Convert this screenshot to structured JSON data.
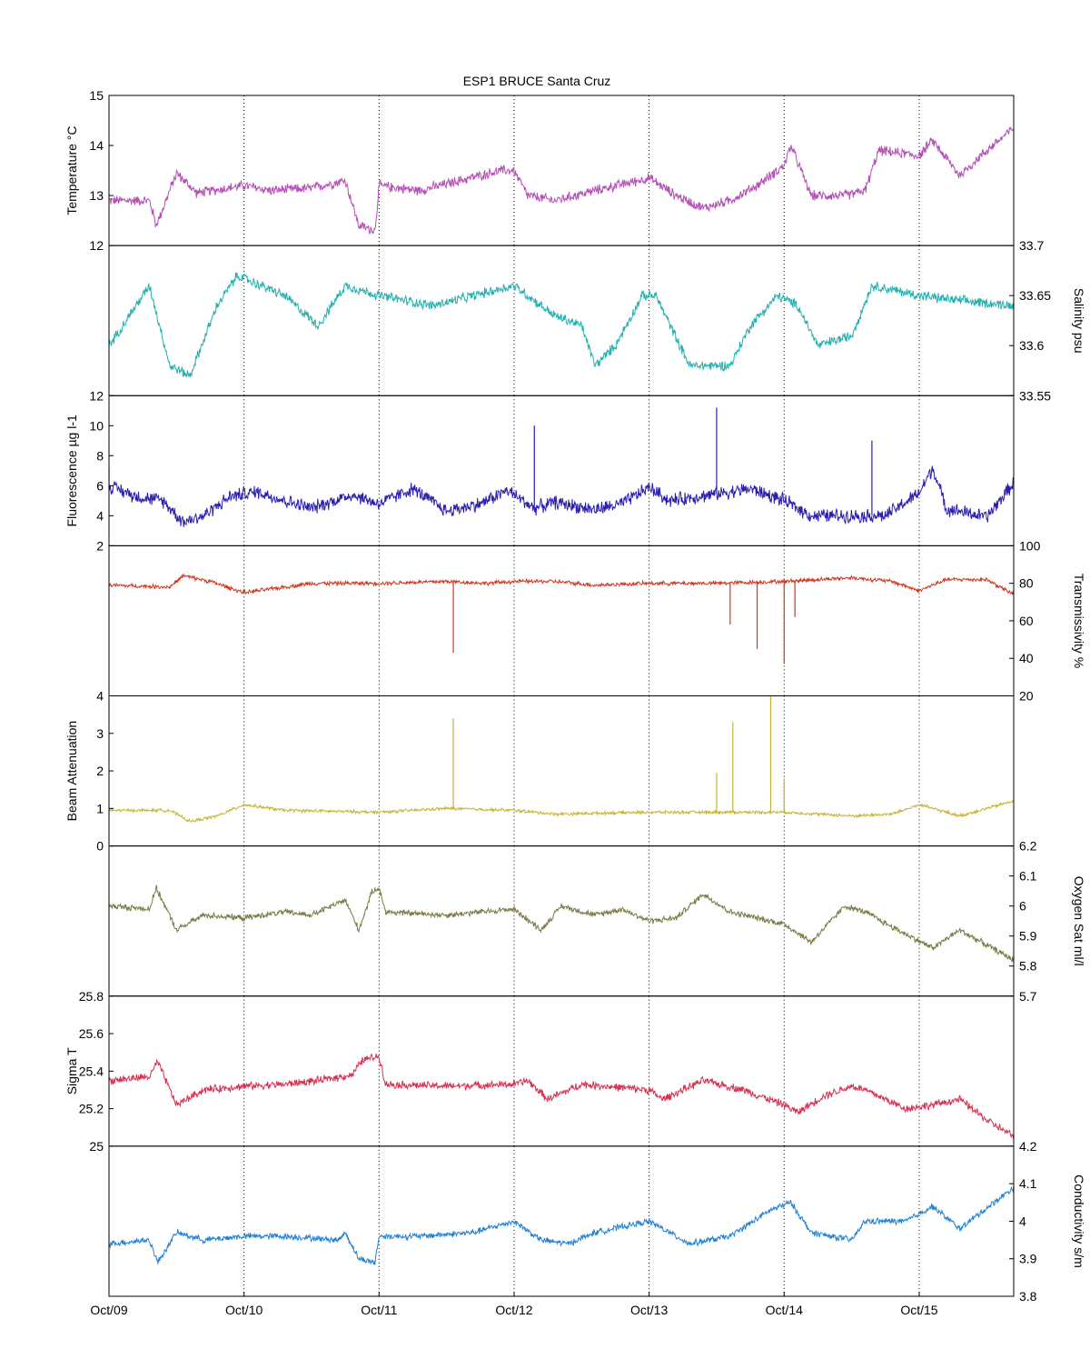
{
  "chart_data": {
    "type": "line",
    "title": "ESP1 BRUCE Santa Cruz",
    "x_ticks": [
      "Oct/09",
      "Oct/10",
      "Oct/11",
      "Oct/12",
      "Oct/13",
      "Oct/14",
      "Oct/15"
    ],
    "xlim": [
      0,
      6.7
    ],
    "grid": "vertical-dotted",
    "panels": [
      {
        "name": "temperature",
        "ylabel": "Temperature °C",
        "axis_side": "left",
        "ylim": [
          12,
          15
        ],
        "yticks": [
          "12",
          "13",
          "14",
          "15"
        ],
        "color": "#b44fb4",
        "noise": 0.12,
        "profile": [
          [
            0,
            12.9
          ],
          [
            0.3,
            12.9
          ],
          [
            0.35,
            12.4
          ],
          [
            0.5,
            13.45
          ],
          [
            0.65,
            13.05
          ],
          [
            1.0,
            13.2
          ],
          [
            1.2,
            13.1
          ],
          [
            1.5,
            13.15
          ],
          [
            1.75,
            13.3
          ],
          [
            1.85,
            12.4
          ],
          [
            1.97,
            12.3
          ],
          [
            2.0,
            13.2
          ],
          [
            2.3,
            13.1
          ],
          [
            2.6,
            13.3
          ],
          [
            2.9,
            13.5
          ],
          [
            3.0,
            13.5
          ],
          [
            3.1,
            13.0
          ],
          [
            3.3,
            12.9
          ],
          [
            3.6,
            13.1
          ],
          [
            4.0,
            13.35
          ],
          [
            4.2,
            13.0
          ],
          [
            4.4,
            12.75
          ],
          [
            4.6,
            12.9
          ],
          [
            4.8,
            13.2
          ],
          [
            5.0,
            13.6
          ],
          [
            5.05,
            14.0
          ],
          [
            5.2,
            13.0
          ],
          [
            5.45,
            13.0
          ],
          [
            5.6,
            13.1
          ],
          [
            5.7,
            13.9
          ],
          [
            6.0,
            13.8
          ],
          [
            6.1,
            14.1
          ],
          [
            6.3,
            13.4
          ],
          [
            6.5,
            13.9
          ],
          [
            6.7,
            14.35
          ]
        ]
      },
      {
        "name": "salinity",
        "ylabel": "Salinity psu",
        "axis_side": "right",
        "ylim": [
          33.55,
          33.7
        ],
        "yticks": [
          "33.55",
          "33.6",
          "33.65",
          "33.7"
        ],
        "color": "#26b0b0",
        "noise": 0.006,
        "profile": [
          [
            0,
            33.6
          ],
          [
            0.3,
            33.66
          ],
          [
            0.45,
            33.58
          ],
          [
            0.6,
            33.57
          ],
          [
            0.8,
            33.64
          ],
          [
            0.95,
            33.67
          ],
          [
            1.3,
            33.65
          ],
          [
            1.55,
            33.62
          ],
          [
            1.75,
            33.66
          ],
          [
            2.0,
            33.65
          ],
          [
            2.4,
            33.64
          ],
          [
            2.7,
            33.65
          ],
          [
            3.0,
            33.66
          ],
          [
            3.3,
            33.63
          ],
          [
            3.5,
            33.62
          ],
          [
            3.6,
            33.58
          ],
          [
            3.75,
            33.6
          ],
          [
            3.95,
            33.65
          ],
          [
            4.05,
            33.65
          ],
          [
            4.3,
            33.58
          ],
          [
            4.6,
            33.58
          ],
          [
            4.75,
            33.62
          ],
          [
            4.95,
            33.65
          ],
          [
            5.1,
            33.64
          ],
          [
            5.25,
            33.6
          ],
          [
            5.5,
            33.61
          ],
          [
            5.65,
            33.66
          ],
          [
            6.0,
            33.65
          ],
          [
            6.3,
            33.645
          ],
          [
            6.7,
            33.64
          ]
        ]
      },
      {
        "name": "fluorescence",
        "ylabel": "Fluorescence µg l-1",
        "axis_side": "left",
        "ylim": [
          2,
          12
        ],
        "yticks": [
          "2",
          "4",
          "6",
          "8",
          "10",
          "12"
        ],
        "color": "#2b1faf",
        "noise": 0.55,
        "profile": [
          [
            0,
            6.0
          ],
          [
            0.2,
            5.3
          ],
          [
            0.4,
            5.0
          ],
          [
            0.55,
            3.6
          ],
          [
            0.7,
            4.0
          ],
          [
            0.9,
            5.3
          ],
          [
            1.1,
            5.6
          ],
          [
            1.3,
            5.0
          ],
          [
            1.5,
            4.5
          ],
          [
            1.8,
            5.4
          ],
          [
            2.0,
            4.8
          ],
          [
            2.25,
            5.8
          ],
          [
            2.5,
            4.3
          ],
          [
            2.75,
            4.8
          ],
          [
            2.95,
            5.7
          ],
          [
            3.15,
            4.5
          ],
          [
            3.3,
            4.9
          ],
          [
            3.6,
            4.4
          ],
          [
            3.8,
            4.8
          ],
          [
            4.0,
            5.9
          ],
          [
            4.15,
            5.0
          ],
          [
            4.45,
            5.4
          ],
          [
            4.75,
            5.8
          ],
          [
            5.0,
            5.0
          ],
          [
            5.2,
            4.0
          ],
          [
            5.5,
            4.0
          ],
          [
            5.75,
            4.0
          ],
          [
            6.0,
            5.5
          ],
          [
            6.1,
            7.2
          ],
          [
            6.2,
            4.5
          ],
          [
            6.5,
            3.9
          ],
          [
            6.7,
            6.2
          ]
        ],
        "spikes": [
          [
            0.0,
            7.2
          ],
          [
            3.15,
            10.0
          ],
          [
            4.5,
            11.2
          ],
          [
            5.65,
            9.0
          ]
        ]
      },
      {
        "name": "transmissivity",
        "ylabel": "Transmissivity %",
        "axis_side": "right",
        "ylim": [
          20,
          100
        ],
        "yticks": [
          "20",
          "40",
          "60",
          "80",
          "100"
        ],
        "color": "#cf3820",
        "noise": 1.3,
        "profile": [
          [
            0,
            79
          ],
          [
            0.45,
            78
          ],
          [
            0.55,
            84
          ],
          [
            0.75,
            81
          ],
          [
            1.0,
            75
          ],
          [
            1.5,
            80
          ],
          [
            2.0,
            80
          ],
          [
            2.5,
            81
          ],
          [
            2.8,
            80
          ],
          [
            3.0,
            81
          ],
          [
            3.3,
            81
          ],
          [
            3.6,
            79
          ],
          [
            4.0,
            80
          ],
          [
            4.5,
            80
          ],
          [
            5.0,
            81
          ],
          [
            5.5,
            83
          ],
          [
            5.8,
            81
          ],
          [
            6.0,
            76
          ],
          [
            6.2,
            82
          ],
          [
            6.5,
            82
          ],
          [
            6.7,
            74
          ]
        ],
        "spikes": [
          [
            2.55,
            43
          ],
          [
            4.6,
            58
          ],
          [
            4.8,
            45
          ],
          [
            5.0,
            37
          ],
          [
            5.08,
            62
          ]
        ]
      },
      {
        "name": "beam-attenuation",
        "ylabel": "Beam Attenuation",
        "axis_side": "left",
        "ylim": [
          0,
          4
        ],
        "yticks": [
          "0",
          "1",
          "2",
          "3",
          "4"
        ],
        "color": "#c8b432",
        "noise": 0.05,
        "profile": [
          [
            0,
            0.95
          ],
          [
            0.45,
            0.95
          ],
          [
            0.6,
            0.65
          ],
          [
            0.8,
            0.8
          ],
          [
            1.0,
            1.1
          ],
          [
            1.3,
            0.95
          ],
          [
            2.0,
            0.9
          ],
          [
            2.5,
            1.0
          ],
          [
            3.0,
            0.95
          ],
          [
            3.3,
            0.85
          ],
          [
            4.0,
            0.9
          ],
          [
            4.5,
            0.9
          ],
          [
            5.0,
            0.9
          ],
          [
            5.5,
            0.8
          ],
          [
            5.8,
            0.85
          ],
          [
            6.0,
            1.1
          ],
          [
            6.3,
            0.8
          ],
          [
            6.7,
            1.2
          ]
        ],
        "spikes": [
          [
            2.55,
            3.4
          ],
          [
            4.5,
            1.95
          ],
          [
            4.62,
            3.3
          ],
          [
            4.9,
            4.0
          ],
          [
            5.0,
            1.8
          ]
        ]
      },
      {
        "name": "oxygen-saturation",
        "ylabel": "Oxygen Sat ml/l",
        "axis_side": "right",
        "ylim": [
          5.7,
          6.2
        ],
        "yticks": [
          "5.7",
          "5.8",
          "5.9",
          "6",
          "6.1",
          "6.2"
        ],
        "color": "#7c7a45",
        "noise": 0.012,
        "profile": [
          [
            0,
            6.0
          ],
          [
            0.3,
            5.99
          ],
          [
            0.35,
            6.06
          ],
          [
            0.5,
            5.92
          ],
          [
            0.7,
            5.97
          ],
          [
            1.0,
            5.96
          ],
          [
            1.3,
            5.98
          ],
          [
            1.5,
            5.97
          ],
          [
            1.75,
            6.02
          ],
          [
            1.85,
            5.92
          ],
          [
            1.95,
            6.05
          ],
          [
            2.0,
            6.06
          ],
          [
            2.05,
            5.98
          ],
          [
            2.5,
            5.97
          ],
          [
            3.0,
            5.99
          ],
          [
            3.2,
            5.92
          ],
          [
            3.35,
            6.0
          ],
          [
            3.6,
            5.97
          ],
          [
            3.8,
            5.99
          ],
          [
            4.0,
            5.95
          ],
          [
            4.2,
            5.96
          ],
          [
            4.4,
            6.04
          ],
          [
            4.6,
            5.98
          ],
          [
            5.0,
            5.94
          ],
          [
            5.2,
            5.88
          ],
          [
            5.45,
            6.0
          ],
          [
            5.6,
            5.98
          ],
          [
            5.8,
            5.93
          ],
          [
            6.1,
            5.86
          ],
          [
            6.3,
            5.92
          ],
          [
            6.7,
            5.82
          ]
        ]
      },
      {
        "name": "sigma-t",
        "ylabel": "Sigma T",
        "axis_side": "left",
        "ylim": [
          25,
          25.8
        ],
        "yticks": [
          "25",
          "25.2",
          "25.4",
          "25.6",
          "25.8"
        ],
        "color": "#d7314f",
        "noise": 0.025,
        "profile": [
          [
            0,
            25.35
          ],
          [
            0.3,
            25.37
          ],
          [
            0.36,
            25.45
          ],
          [
            0.5,
            25.22
          ],
          [
            0.7,
            25.3
          ],
          [
            1.0,
            25.32
          ],
          [
            1.3,
            25.33
          ],
          [
            1.55,
            25.35
          ],
          [
            1.8,
            25.38
          ],
          [
            1.88,
            25.46
          ],
          [
            2.0,
            25.48
          ],
          [
            2.05,
            25.33
          ],
          [
            2.5,
            25.32
          ],
          [
            3.0,
            25.33
          ],
          [
            3.1,
            25.35
          ],
          [
            3.25,
            25.25
          ],
          [
            3.5,
            25.33
          ],
          [
            4.0,
            25.3
          ],
          [
            4.1,
            25.25
          ],
          [
            4.4,
            25.35
          ],
          [
            4.7,
            25.3
          ],
          [
            5.0,
            25.22
          ],
          [
            5.1,
            25.18
          ],
          [
            5.3,
            25.27
          ],
          [
            5.5,
            25.32
          ],
          [
            5.6,
            25.3
          ],
          [
            5.9,
            25.2
          ],
          [
            6.1,
            25.22
          ],
          [
            6.3,
            25.25
          ],
          [
            6.5,
            25.14
          ],
          [
            6.7,
            25.05
          ]
        ]
      },
      {
        "name": "conductivity",
        "ylabel": "Conductivity s/m",
        "axis_side": "right",
        "ylim": [
          3.8,
          4.2
        ],
        "yticks": [
          "3.8",
          "3.9",
          "4",
          "4.1",
          "4.2"
        ],
        "color": "#2081d4",
        "noise": 0.01,
        "profile": [
          [
            0,
            3.94
          ],
          [
            0.3,
            3.95
          ],
          [
            0.36,
            3.89
          ],
          [
            0.5,
            3.97
          ],
          [
            0.7,
            3.95
          ],
          [
            1.0,
            3.96
          ],
          [
            1.3,
            3.96
          ],
          [
            1.7,
            3.95
          ],
          [
            1.75,
            3.97
          ],
          [
            1.85,
            3.9
          ],
          [
            1.97,
            3.89
          ],
          [
            2.0,
            3.96
          ],
          [
            2.3,
            3.96
          ],
          [
            2.7,
            3.97
          ],
          [
            3.0,
            4.0
          ],
          [
            3.2,
            3.95
          ],
          [
            3.4,
            3.94
          ],
          [
            3.6,
            3.97
          ],
          [
            4.0,
            4.0
          ],
          [
            4.1,
            3.98
          ],
          [
            4.3,
            3.94
          ],
          [
            4.6,
            3.96
          ],
          [
            4.9,
            4.03
          ],
          [
            5.05,
            4.05
          ],
          [
            5.2,
            3.97
          ],
          [
            5.5,
            3.95
          ],
          [
            5.6,
            4.0
          ],
          [
            5.9,
            4.0
          ],
          [
            6.1,
            4.04
          ],
          [
            6.3,
            3.98
          ],
          [
            6.7,
            4.09
          ]
        ]
      }
    ]
  }
}
